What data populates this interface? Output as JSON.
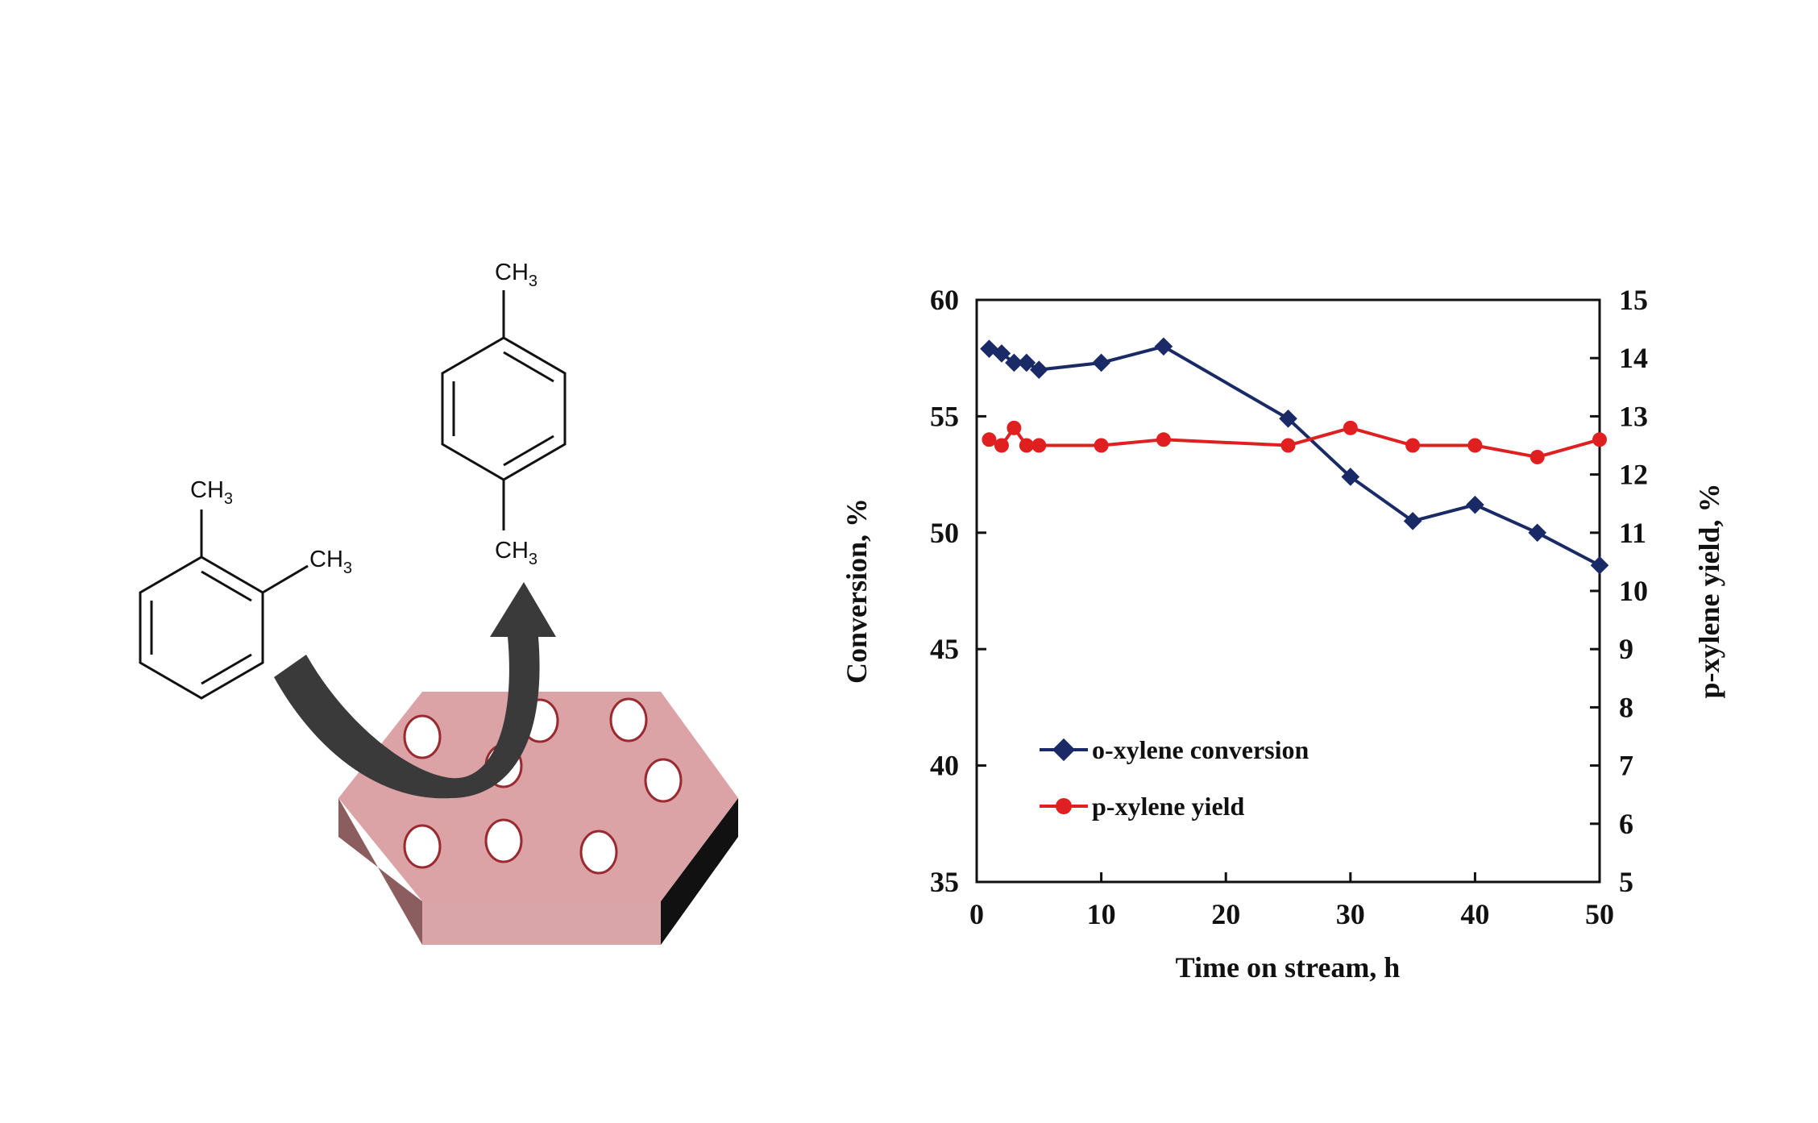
{
  "scheme": {
    "reactant_methyl_1": "CH3",
    "reactant_methyl_2": "CH3",
    "product_methyl_top": "CH3",
    "product_methyl_bottom": "CH3"
  },
  "colors": {
    "conversion_series": "#1a2a66",
    "yield_series": "#e02020",
    "catalyst_top": "#dba3a6",
    "catalyst_front": "#d9a5a8",
    "catalyst_left": "#8c5d5f",
    "catalyst_right": "#111111",
    "pore_outline": "#9b2a30",
    "arrow": "#3a3a3a"
  },
  "chart_data": {
    "type": "line",
    "title": "",
    "xlabel": "Time on stream, h",
    "ylabel": "Conversion, %",
    "y2label": "p-xylene yield, %",
    "xlim": [
      0,
      50
    ],
    "ylim": [
      35,
      60
    ],
    "y2lim": [
      5,
      15
    ],
    "xticks": [
      0,
      10,
      20,
      30,
      40,
      50
    ],
    "yticks": [
      35,
      40,
      45,
      50,
      55,
      60
    ],
    "y2ticks": [
      5,
      6,
      7,
      8,
      9,
      10,
      11,
      12,
      13,
      14,
      15
    ],
    "grid": false,
    "legend_position": "bottom-left",
    "series": [
      {
        "name": "o-xylene conversion",
        "axis": "left",
        "marker": "diamond",
        "color": "#1a2a66",
        "x": [
          1,
          2,
          3,
          4,
          5,
          10,
          15,
          25,
          30,
          35,
          40,
          45,
          50
        ],
        "y": [
          57.9,
          57.7,
          57.3,
          57.3,
          57.0,
          57.3,
          58.0,
          54.9,
          52.4,
          50.5,
          51.2,
          50.0,
          48.6
        ]
      },
      {
        "name": "p-xylene yield",
        "axis": "right",
        "marker": "circle",
        "color": "#e02020",
        "x": [
          1,
          2,
          3,
          4,
          5,
          10,
          15,
          25,
          30,
          35,
          40,
          45,
          50
        ],
        "y": [
          12.6,
          12.5,
          12.8,
          12.5,
          12.5,
          12.5,
          12.6,
          12.5,
          12.8,
          12.5,
          12.5,
          12.3,
          12.6
        ]
      }
    ]
  }
}
